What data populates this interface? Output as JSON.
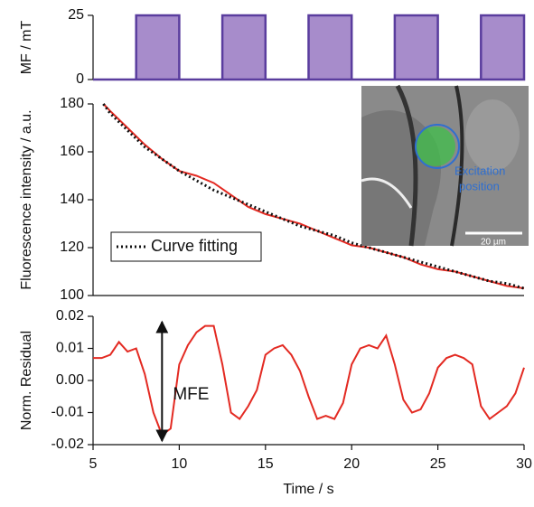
{
  "chart_data": [
    {
      "type": "area",
      "ylabel": "MF / mT",
      "color": "#5a3d9e",
      "fill": "#a78ccb",
      "x": [
        5,
        7.5,
        7.5,
        10,
        10,
        12.5,
        12.5,
        15,
        15,
        17.5,
        17.5,
        20,
        20,
        22.5,
        22.5,
        25,
        25,
        27.5,
        27.5,
        30
      ],
      "values": [
        0,
        0,
        25,
        25,
        0,
        0,
        25,
        25,
        0,
        0,
        25,
        25,
        0,
        0,
        25,
        25,
        0,
        0,
        25,
        25
      ],
      "xlim": [
        5,
        30
      ],
      "ylim": [
        0,
        25
      ],
      "yticks": [
        0,
        25
      ]
    },
    {
      "type": "line",
      "ylabel": "Fluorescence intensity / a.u.",
      "x": [
        5.6,
        6,
        7,
        8,
        9,
        10,
        11,
        12,
        13,
        14,
        15,
        16,
        17,
        18,
        19,
        20,
        21,
        22,
        23,
        24,
        25,
        26,
        27,
        28,
        29,
        30
      ],
      "series": [
        {
          "color": "#e32a22",
          "style": "solid",
          "values": [
            180,
            177,
            170,
            163,
            157,
            152,
            150,
            147,
            142,
            137,
            134,
            132,
            130,
            127,
            124,
            121,
            120,
            118,
            116,
            113,
            111,
            110,
            108,
            106,
            104,
            103
          ]
        },
        {
          "name": "Curve fitting",
          "color": "#111111",
          "style": "dotted",
          "values": [
            180,
            176,
            169,
            162,
            157,
            152,
            148,
            144,
            141,
            138,
            135,
            132,
            129,
            127,
            125,
            122,
            120,
            118,
            116,
            114,
            112,
            110,
            108,
            106,
            105,
            103
          ]
        }
      ],
      "legend": "lower left",
      "inset_text": [
        "Excitation",
        "position",
        "20 µm"
      ],
      "xlim": [
        5,
        30
      ],
      "ylim": [
        100,
        180
      ],
      "yticks": [
        100,
        120,
        140,
        160,
        180
      ]
    },
    {
      "type": "line",
      "ylabel": "Norm. Residual",
      "xlabel": "Time / s",
      "annotation": "MFE",
      "x": [
        5,
        5.5,
        6,
        6.5,
        7,
        7.5,
        8,
        8.5,
        9,
        9.5,
        10,
        10.5,
        11,
        11.5,
        12,
        12.5,
        13,
        13.5,
        14,
        14.5,
        15,
        15.5,
        16,
        16.5,
        17,
        17.5,
        18,
        18.5,
        19,
        19.5,
        20,
        20.5,
        21,
        21.5,
        22,
        22.5,
        23,
        23.5,
        24,
        24.5,
        25,
        25.5,
        26,
        26.5,
        27,
        27.5,
        28,
        28.5,
        29,
        29.5,
        30
      ],
      "series": [
        {
          "color": "#e32a22",
          "style": "solid",
          "values": [
            0.007,
            0.007,
            0.008,
            0.012,
            0.009,
            0.01,
            0.002,
            -0.01,
            -0.017,
            -0.015,
            0.005,
            0.011,
            0.015,
            0.017,
            0.017,
            0.005,
            -0.01,
            -0.012,
            -0.008,
            -0.003,
            0.008,
            0.01,
            0.011,
            0.008,
            0.003,
            -0.005,
            -0.012,
            -0.011,
            -0.012,
            -0.007,
            0.005,
            0.01,
            0.011,
            0.01,
            0.014,
            0.005,
            -0.006,
            -0.01,
            -0.009,
            -0.004,
            0.004,
            0.007,
            0.008,
            0.007,
            0.005,
            -0.008,
            -0.012,
            -0.01,
            -0.008,
            -0.004,
            0.004
          ]
        }
      ],
      "xlim": [
        5,
        30
      ],
      "xticks": [
        5,
        10,
        15,
        20,
        25,
        30
      ],
      "ylim": [
        -0.02,
        0.02
      ],
      "yticks": [
        {
          "value": -0.02,
          "label": "-0.02"
        },
        {
          "value": -0.01,
          "label": "-0.01"
        },
        {
          "value": 0,
          "label": "0.00"
        },
        {
          "value": 0.01,
          "label": "0.01"
        },
        {
          "value": 0.02,
          "label": "0.02"
        }
      ]
    }
  ]
}
